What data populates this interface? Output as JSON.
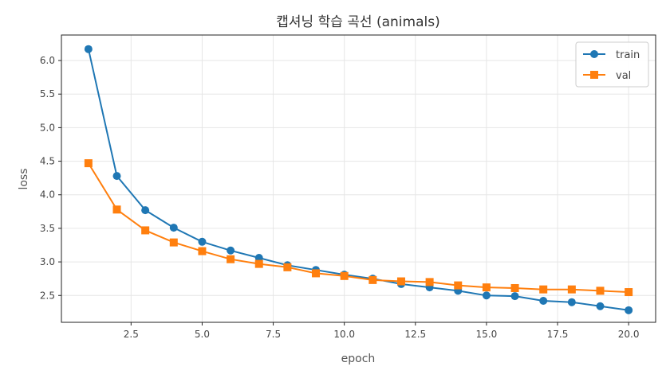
{
  "chart_data": {
    "type": "line",
    "title": "캡셔닝 학습 곡선 (animals)",
    "xlabel": "epoch",
    "ylabel": "loss",
    "xlim": [
      0.05,
      20.95
    ],
    "ylim": [
      2.1,
      6.38
    ],
    "xticks": [
      2.5,
      5.0,
      7.5,
      10.0,
      12.5,
      15.0,
      17.5,
      20.0
    ],
    "xtick_labels": [
      "2.5",
      "5.0",
      "7.5",
      "10.0",
      "12.5",
      "15.0",
      "17.5",
      "20.0"
    ],
    "yticks": [
      2.5,
      3.0,
      3.5,
      4.0,
      4.5,
      5.0,
      5.5,
      6.0
    ],
    "ytick_labels": [
      "2.5",
      "3.0",
      "3.5",
      "4.0",
      "4.5",
      "5.0",
      "5.5",
      "6.0"
    ],
    "grid": true,
    "legend_position": "top-right",
    "x": [
      1,
      2,
      3,
      4,
      5,
      6,
      7,
      8,
      9,
      10,
      11,
      12,
      13,
      14,
      15,
      16,
      17,
      18,
      19,
      20
    ],
    "series": [
      {
        "name": "train",
        "color": "#1f77b4",
        "marker": "circle",
        "values": [
          6.17,
          4.28,
          3.77,
          3.51,
          3.3,
          3.17,
          3.06,
          2.95,
          2.88,
          2.81,
          2.75,
          2.67,
          2.62,
          2.57,
          2.5,
          2.49,
          2.42,
          2.4,
          2.34,
          2.28
        ]
      },
      {
        "name": "val",
        "color": "#ff7f0e",
        "marker": "square",
        "values": [
          4.47,
          3.78,
          3.47,
          3.29,
          3.16,
          3.04,
          2.97,
          2.92,
          2.83,
          2.79,
          2.73,
          2.71,
          2.7,
          2.65,
          2.62,
          2.61,
          2.59,
          2.59,
          2.57,
          2.55
        ]
      }
    ]
  }
}
